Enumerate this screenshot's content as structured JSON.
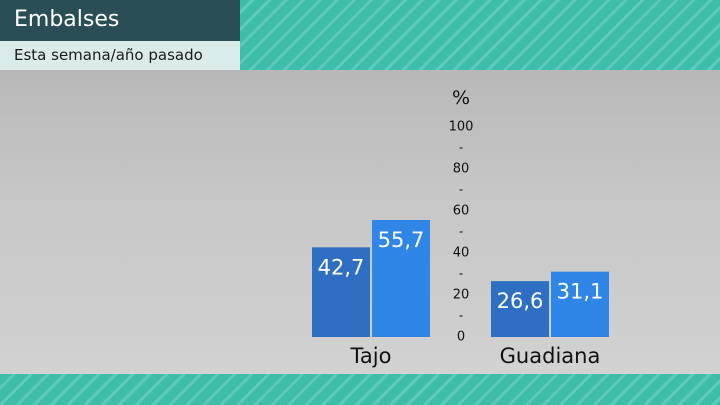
{
  "header": {
    "title": "Embalses",
    "subtitle": "Esta semana/año pasado"
  },
  "colors": {
    "background": "#3dbdaa",
    "series_dark": "#2e6fc4",
    "series_light": "#2f86e6"
  },
  "chart_data": {
    "type": "bar",
    "title": "Embalses",
    "subtitle": "Esta semana/año pasado",
    "ylabel": "%",
    "ylim": [
      0,
      100
    ],
    "yticks": [
      "0",
      "20",
      "40",
      "60",
      "80",
      "100"
    ],
    "tick_separator": "-",
    "categories": [
      "Tajo",
      "Guadiana"
    ],
    "series": [
      {
        "values": [
          42.7,
          26.6
        ],
        "labels": [
          "42,7",
          "26,6"
        ],
        "color": "#2e6fc4"
      },
      {
        "values": [
          55.7,
          31.1
        ],
        "labels": [
          "55,7",
          "31,1"
        ],
        "color": "#2f86e6"
      }
    ],
    "grid": false,
    "legend": "none"
  }
}
